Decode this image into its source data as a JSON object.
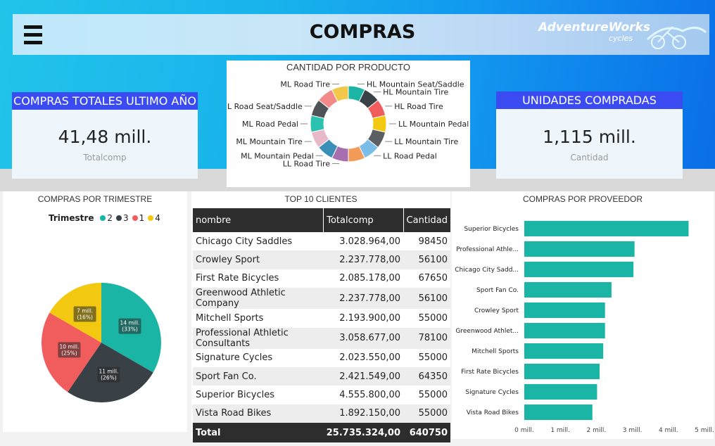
{
  "header": {
    "title": "COMPRAS",
    "logo_main": "AdventureWorks",
    "logo_sub": "cycles"
  },
  "kpis": [
    {
      "title": "COMPRAS TOTALES ULTIMO AÑO",
      "value": "41,48 mill.",
      "label": "Totalcomp"
    },
    {
      "title": "UNIDADES COMPRADAS",
      "value": "1,115 mill.",
      "label": "Cantidad"
    }
  ],
  "donut": {
    "title": "CANTIDAD POR PRODUCTO",
    "slices": [
      {
        "name": "HL Mountain Seat/Saddle",
        "color": "#1ab5a4"
      },
      {
        "name": "HL Mountain Tire",
        "color": "#3a4146"
      },
      {
        "name": "HL Road Tire",
        "color": "#f15c5c"
      },
      {
        "name": "LL Mountain Pedal",
        "color": "#f2c811"
      },
      {
        "name": "LL Mountain Tire",
        "color": "#5c5f62"
      },
      {
        "name": "LL Road Pedal",
        "color": "#79bde8"
      },
      {
        "name": "",
        "color": "#f39c5a"
      },
      {
        "name": "LL Road Tire",
        "color": "#a76fb0"
      },
      {
        "name": "ML Mountain Pedal",
        "color": "#3a8fb7"
      },
      {
        "name": "ML Mountain Tire",
        "color": "#e8b9c8"
      },
      {
        "name": "ML Road Pedal",
        "color": "#2cc2b0"
      },
      {
        "name": "ML Road Seat/Saddle",
        "color": "#4d5357"
      },
      {
        "name": "",
        "color": "#f28a8a"
      },
      {
        "name": "ML Road Tire",
        "color": "#f2c84b"
      }
    ]
  },
  "pie": {
    "title": "COMPRAS POR TRIMESTRE",
    "legend_title": "Trimestre",
    "legend": [
      {
        "name": "2",
        "color": "#1ab5a4"
      },
      {
        "name": "3",
        "color": "#3a4146"
      },
      {
        "name": "1",
        "color": "#f15c5c"
      },
      {
        "name": "4",
        "color": "#f2c811"
      }
    ]
  },
  "table": {
    "title": "TOP 10 CLIENTES",
    "columns": [
      "nombre",
      "Totalcomp",
      "Cantidad"
    ],
    "rows": [
      [
        "Chicago City Saddles",
        "3.028.964,00",
        "98450"
      ],
      [
        "Crowley Sport",
        "2.237.778,00",
        "56100"
      ],
      [
        "First Rate Bicycles",
        "2.085.178,00",
        "67650"
      ],
      [
        "Greenwood Athletic Company",
        "2.237.778,00",
        "56100"
      ],
      [
        "Mitchell Sports",
        "2.193.900,00",
        "55000"
      ],
      [
        "Professional Athletic Consultants",
        "3.058.677,00",
        "78100"
      ],
      [
        "Signature Cycles",
        "2.023.550,00",
        "55000"
      ],
      [
        "Sport Fan Co.",
        "2.421.549,00",
        "64350"
      ],
      [
        "Superior Bicycles",
        "4.555.800,00",
        "55000"
      ],
      [
        "Vista Road Bikes",
        "1.892.150,00",
        "55000"
      ]
    ],
    "total": [
      "Total",
      "25.735.324,00",
      "640750"
    ]
  },
  "chart_data": [
    {
      "type": "pie",
      "title": "COMPRAS POR TRIMESTRE",
      "categories": [
        "2",
        "3",
        "1",
        "4"
      ],
      "values": [
        14,
        11,
        10,
        7
      ],
      "data_labels": [
        "14 mill.",
        "11 mill.",
        "10 mill.",
        "7 mill."
      ],
      "percent_labels": [
        "(33%)",
        "(26%)",
        "(25%)",
        "(16%)"
      ],
      "colors": [
        "#1ab5a4",
        "#3a4146",
        "#f15c5c",
        "#f2c811"
      ],
      "legend": "top-left"
    },
    {
      "type": "bar",
      "orientation": "horizontal",
      "title": "COMPRAS POR PROVEEDOR",
      "categories": [
        "Superior Bicycles",
        "Professional Athle...",
        "Chicago City Sadd...",
        "Sport Fan Co.",
        "Crowley Sport",
        "Greenwood Athlet...",
        "Mitchell Sports",
        "First Rate Bicycles",
        "Signature Cycles",
        "Vista Road Bikes"
      ],
      "values": [
        4.56,
        3.06,
        3.03,
        2.42,
        2.24,
        2.24,
        2.19,
        2.09,
        2.02,
        1.89
      ],
      "xticks": [
        "0 mill.",
        "1 mill.",
        "2 mill.",
        "3 mill.",
        "4 mill.",
        "5 mill."
      ],
      "xlim": [
        0,
        5
      ],
      "color": "#1ab5a4",
      "grid": false
    }
  ]
}
